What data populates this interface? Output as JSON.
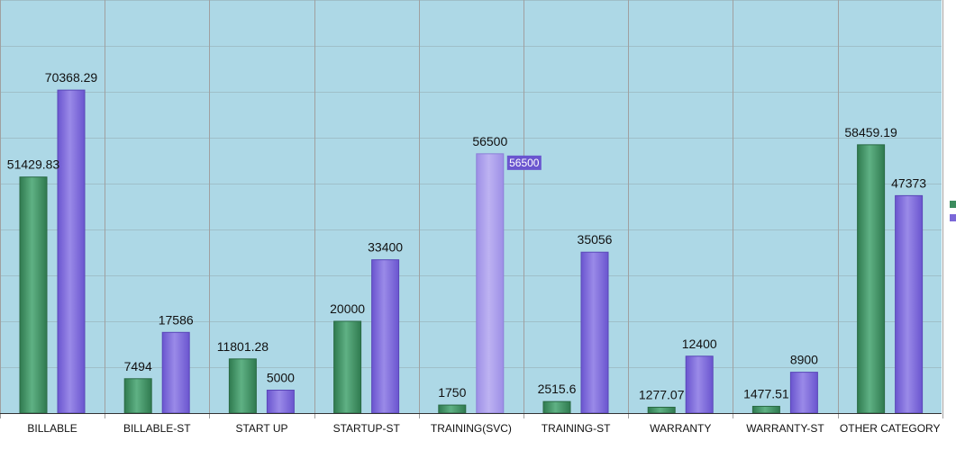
{
  "chart_data": {
    "type": "bar",
    "categories": [
      "BILLABLE",
      "BILLABLE-ST",
      "START UP",
      "STARTUP-ST",
      "TRAINING(SVC)",
      "TRAINING-ST",
      "WARRANTY",
      "WARRANTY-ST",
      "OTHER CATEGORY"
    ],
    "series": [
      {
        "values": [
          51429.83,
          7494,
          11801.28,
          20000,
          1750,
          2515.6,
          1277.07,
          1477.51,
          58459.19
        ],
        "labels": [
          "51429.83",
          "7494",
          "11801.28",
          "20000",
          "1750",
          "2515.6",
          "1277.07",
          "1477.51",
          "58459.19"
        ],
        "color": "#3c8c5e"
      },
      {
        "values": [
          70368.29,
          17586,
          5000,
          33400,
          56500,
          35056,
          12400,
          8900,
          47373
        ],
        "labels": [
          "70368.29",
          "17586",
          "5000",
          "33400",
          "56500",
          "35056",
          "12400",
          "8900",
          "47373"
        ],
        "color": "#7b68d8"
      }
    ],
    "ylim": [
      0,
      90000
    ],
    "grid": true,
    "background": "#add8e6",
    "highlighted": {
      "series": 1,
      "category": 4,
      "label": "56500"
    }
  }
}
